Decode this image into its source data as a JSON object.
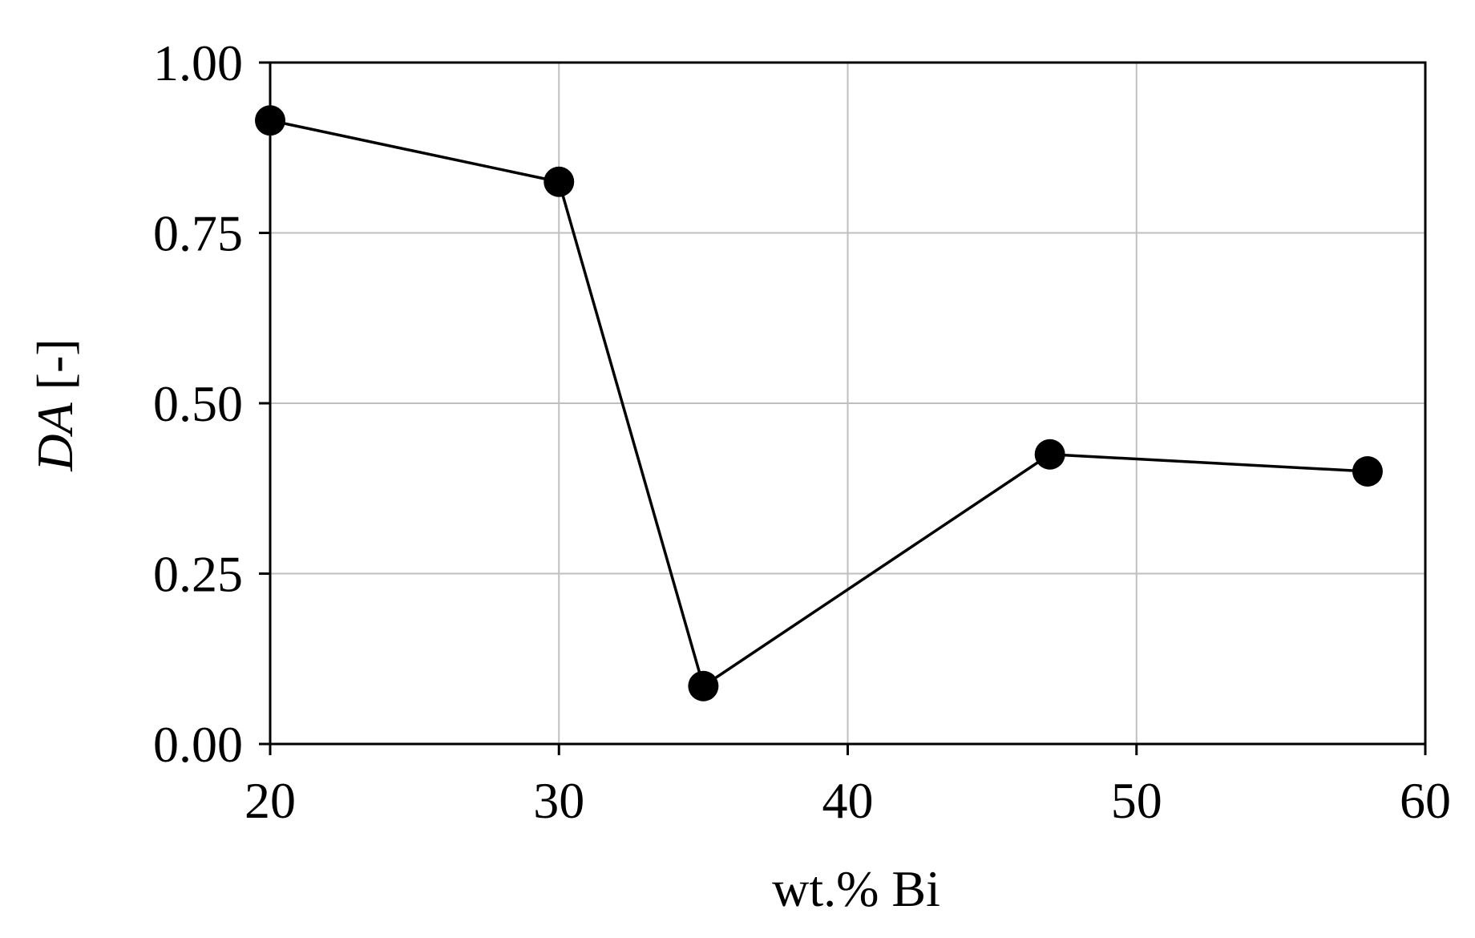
{
  "chart_data": {
    "type": "line",
    "title": "",
    "xlabel": "wt.% Bi",
    "ylabel": {
      "italic": "DA",
      "rest": " [-]"
    },
    "xlim": [
      20,
      60
    ],
    "ylim": [
      0,
      1
    ],
    "xticks": [
      20,
      30,
      40,
      50,
      60
    ],
    "yticks": [
      0,
      0.25,
      0.5,
      0.75,
      1.0
    ],
    "xtick_labels": [
      "20",
      "30",
      "40",
      "50",
      "60"
    ],
    "ytick_labels": [
      "0.00",
      "0.25",
      "0.50",
      "0.75",
      "1.00"
    ],
    "grid": true,
    "legend": "none",
    "series": [
      {
        "x": [
          20,
          30,
          35,
          47,
          58
        ],
        "y": [
          0.915,
          0.825,
          0.085,
          0.425,
          0.4
        ],
        "color": "#000000",
        "marker": "circle"
      }
    ]
  }
}
